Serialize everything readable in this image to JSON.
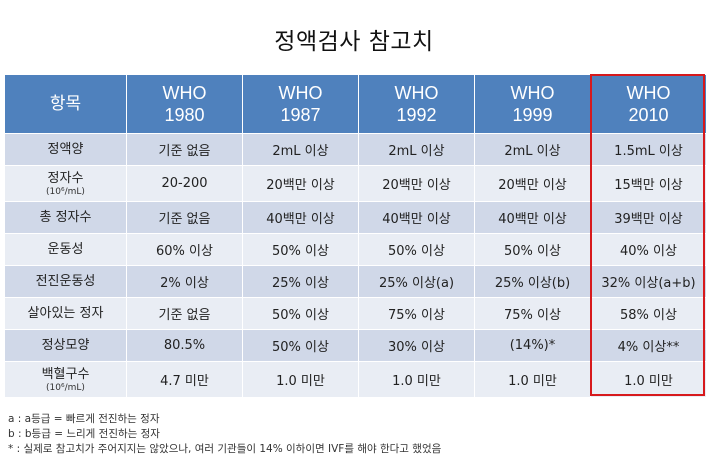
{
  "title": "정액검사 참고치",
  "header": {
    "item": "항목",
    "columns": [
      {
        "l1": "WHO",
        "l2": "1980"
      },
      {
        "l1": "WHO",
        "l2": "1987"
      },
      {
        "l1": "WHO",
        "l2": "1992"
      },
      {
        "l1": "WHO",
        "l2": "1999"
      },
      {
        "l1": "WHO",
        "l2": "2010"
      }
    ]
  },
  "rows": [
    {
      "label": "정액양",
      "sub": "",
      "cells": [
        "기준 없음",
        "2mL 이상",
        "2mL 이상",
        "2mL 이상",
        "1.5mL 이상"
      ]
    },
    {
      "label": "정자수",
      "sub": "(10⁶/mL)",
      "cells": [
        "20-200",
        "20백만 이상",
        "20백만 이상",
        "20백만 이상",
        "15백만 이상"
      ]
    },
    {
      "label": "총 정자수",
      "sub": "",
      "cells": [
        "기준 없음",
        "40백만 이상",
        "40백만 이상",
        "40백만 이상",
        "39백만 이상"
      ]
    },
    {
      "label": "운동성",
      "sub": "",
      "cells": [
        "60% 이상",
        "50% 이상",
        "50% 이상",
        "50% 이상",
        "40% 이상"
      ]
    },
    {
      "label": "전진운동성",
      "sub": "",
      "cells": [
        "2% 이상",
        "25% 이상",
        "25% 이상(a)",
        "25% 이상(b)",
        "32% 이상(a+b)"
      ]
    },
    {
      "label": "살아있는 정자",
      "sub": "",
      "cells": [
        "기준 없음",
        "50% 이상",
        "75% 이상",
        "75% 이상",
        "58% 이상"
      ]
    },
    {
      "label": "정상모양",
      "sub": "",
      "cells": [
        "80.5%",
        "50% 이상",
        "30% 이상",
        "(14%)*",
        "4% 이상**"
      ]
    },
    {
      "label": "백혈구수",
      "sub": "(10⁶/mL)",
      "cells": [
        "4.7 미만",
        "1.0 미만",
        "1.0 미만",
        "1.0 미만",
        "1.0 미만"
      ]
    }
  ],
  "notes": [
    "a : a등급 = 빠르게 전진하는 정자",
    "b : b등급 = 느리게 전진하는 정자",
    "* : 실제로 참고치가 주어지지는 않았으나, 여러 기관들이 14% 이하이면  IVF를 해야 한다고 했었음"
  ],
  "colors": {
    "header": "#4f81bd",
    "row_odd": "#d0d8e8",
    "row_even": "#e9edf4",
    "highlight_border": "#d7191c"
  }
}
